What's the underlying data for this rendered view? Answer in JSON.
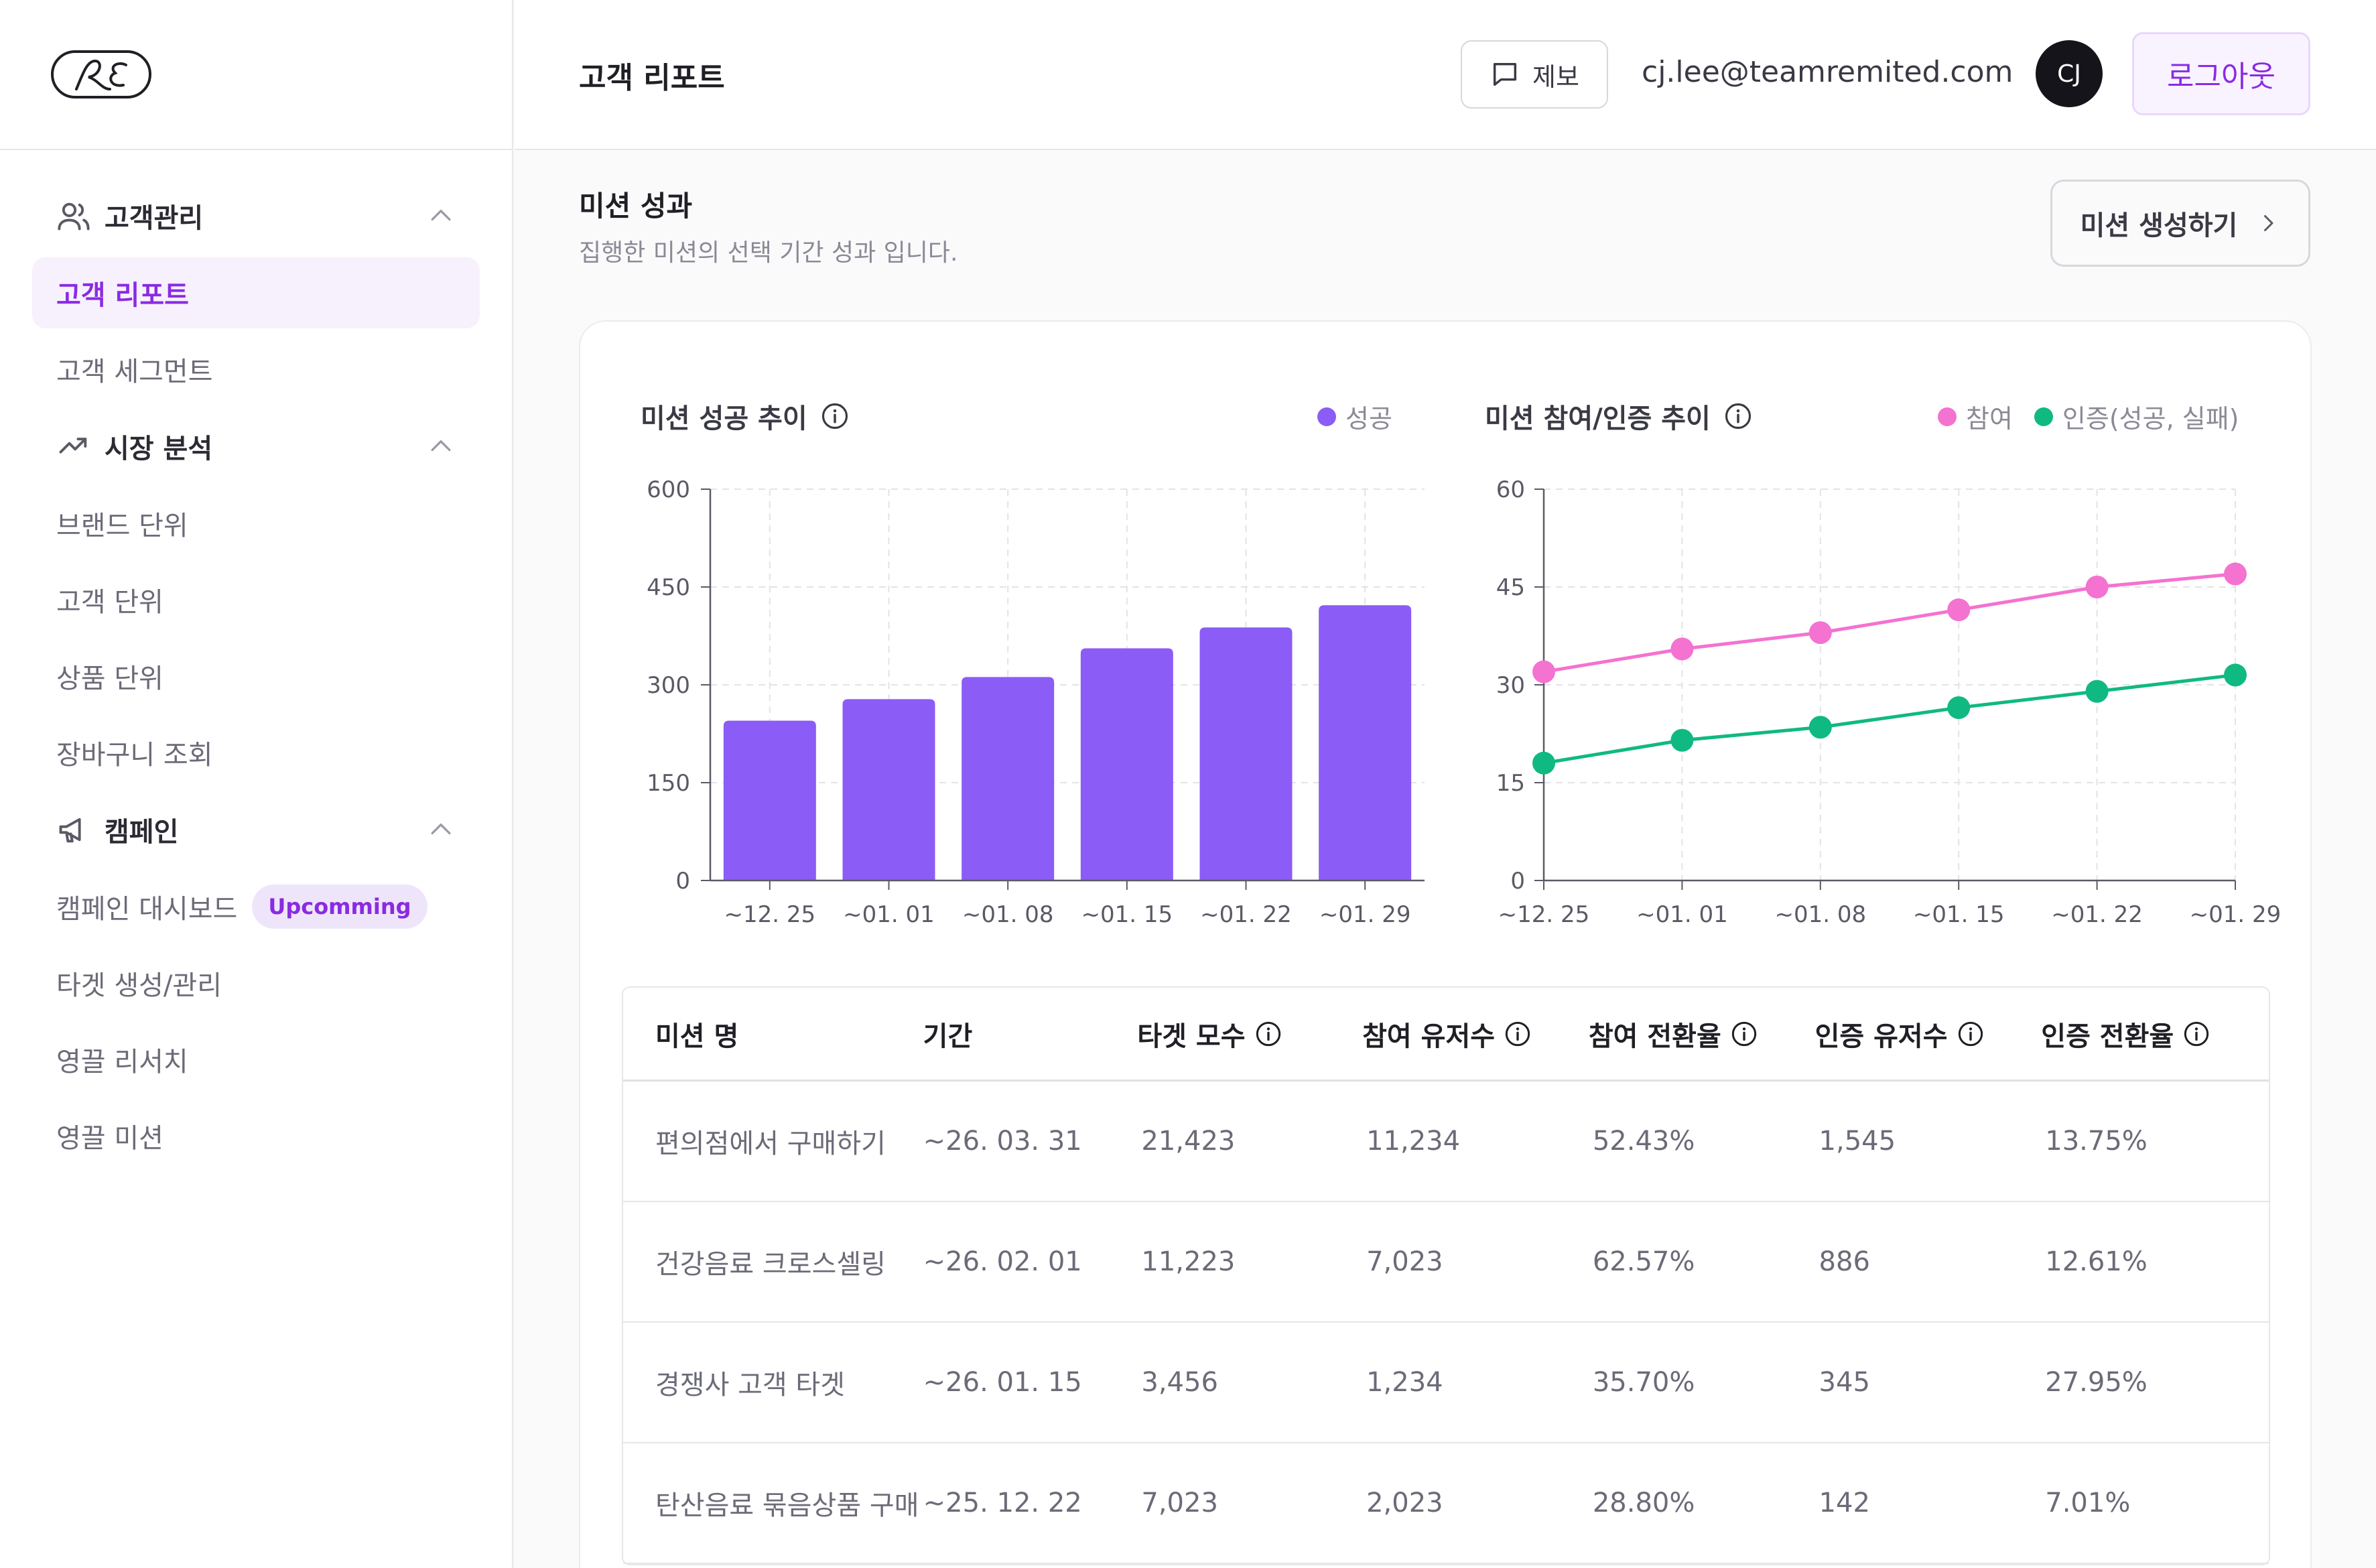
{
  "sidebar": {
    "logo_text": "RE",
    "groups": [
      {
        "label": "고객관리",
        "icon": "users-icon",
        "items": [
          {
            "label": "고객 리포트",
            "active": true
          },
          {
            "label": "고객 세그먼트"
          }
        ]
      },
      {
        "label": "시장 분석",
        "icon": "trending-up-icon",
        "items": [
          {
            "label": "브랜드 단위"
          },
          {
            "label": "고객 단위"
          },
          {
            "label": "상품 단위"
          },
          {
            "label": "장바구니 조회"
          }
        ]
      },
      {
        "label": "캠페인",
        "icon": "megaphone-icon",
        "items": [
          {
            "label": "캠페인 대시보드",
            "badge": "Upcomming"
          },
          {
            "label": "타겟 생성/관리"
          },
          {
            "label": "영끌 리서치"
          },
          {
            "label": "영끌 미션"
          }
        ]
      }
    ]
  },
  "header": {
    "title": "고객 리포트",
    "report_label": "제보",
    "email": "cj.lee@teamremited.com",
    "avatar_initials": "CJ",
    "logout_label": "로그아웃"
  },
  "section": {
    "title": "미션 성과",
    "subtitle": "집행한 미션의 선택 기간 성과 입니다.",
    "create_label": "미션 생성하기"
  },
  "colors": {
    "accent": "#8a2be2",
    "bar": "#8b5cf6",
    "participation": "#f472d0",
    "verification": "#10b981"
  },
  "chart_data": [
    {
      "type": "bar",
      "title": "미션 성공 추이",
      "categories": [
        "~12. 25",
        "~01. 01",
        "~01. 08",
        "~01. 15",
        "~01. 22",
        "~01. 29"
      ],
      "series": [
        {
          "name": "성공",
          "values": [
            245,
            278,
            312,
            356,
            388,
            422
          ]
        }
      ],
      "ylim": [
        0,
        600
      ],
      "yticks": [
        0,
        150,
        300,
        450,
        600
      ],
      "grid": true
    },
    {
      "type": "line",
      "title": "미션 참여/인증 추이",
      "categories": [
        "~12. 25",
        "~01. 01",
        "~01. 08",
        "~01. 15",
        "~01. 22",
        "~01. 29"
      ],
      "series": [
        {
          "name": "참여",
          "values": [
            32,
            35.5,
            38,
            41.5,
            45,
            47
          ]
        },
        {
          "name": "인증(성공, 실패)",
          "values": [
            18,
            21.5,
            23.5,
            26.5,
            29,
            31.5
          ]
        }
      ],
      "ylim": [
        0,
        60
      ],
      "yticks": [
        0,
        15,
        30,
        45,
        60
      ],
      "grid": true
    }
  ],
  "table": {
    "headers": [
      "미션 명",
      "기간",
      "타겟 모수",
      "참여 유저수",
      "참여 전환율",
      "인증 유저수",
      "인증 전환율"
    ],
    "rows": [
      [
        "편의점에서 구매하기",
        "~26. 03. 31",
        "21,423",
        "11,234",
        "52.43%",
        "1,545",
        "13.75%"
      ],
      [
        "건강음료 크로스셀링",
        "~26. 02. 01",
        "11,223",
        "7,023",
        "62.57%",
        "886",
        "12.61%"
      ],
      [
        "경쟁사 고객 타겟",
        "~26. 01. 15",
        "3,456",
        "1,234",
        "35.70%",
        "345",
        "27.95%"
      ],
      [
        "탄산음료 묶음상품 구매",
        "~25. 12. 22",
        "7,023",
        "2,023",
        "28.80%",
        "142",
        "7.01%"
      ]
    ]
  }
}
